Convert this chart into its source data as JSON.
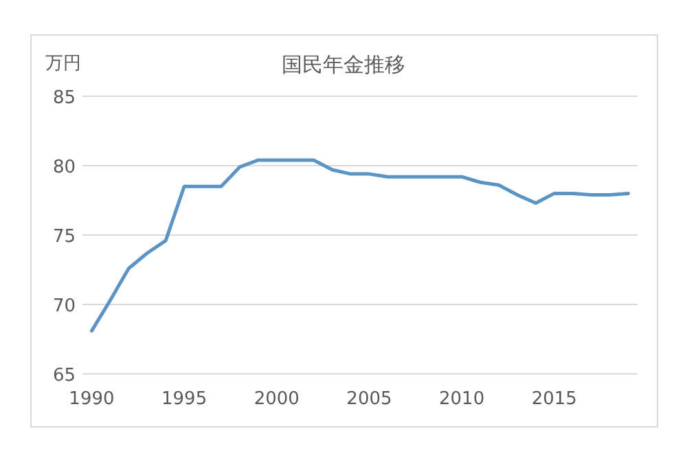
{
  "chart_data": {
    "type": "line",
    "title": "国民年金推移",
    "ylabel": "万円",
    "x": [
      1990,
      1991,
      1992,
      1993,
      1994,
      1995,
      1996,
      1997,
      1998,
      1999,
      2000,
      2001,
      2002,
      2003,
      2004,
      2005,
      2006,
      2007,
      2008,
      2009,
      2010,
      2011,
      2012,
      2013,
      2014,
      2015,
      2016,
      2017,
      2018,
      2019
    ],
    "series": [
      {
        "color": "#5b93c4",
        "values": [
          68.1,
          70.3,
          72.6,
          73.7,
          74.6,
          78.5,
          78.5,
          78.5,
          79.9,
          80.4,
          80.4,
          80.4,
          80.4,
          79.7,
          79.4,
          79.4,
          79.2,
          79.2,
          79.2,
          79.2,
          79.2,
          78.8,
          78.6,
          77.9,
          77.3,
          78.0,
          78.0,
          77.9,
          77.9,
          78.0
        ]
      }
    ],
    "xlim": [
      1989.5,
      2019.5
    ],
    "xticks": [
      1990,
      1995,
      2000,
      2005,
      2010,
      2015
    ],
    "ylim": [
      65,
      85
    ],
    "yticks": [
      65,
      70,
      75,
      80,
      85
    ],
    "grid": "y",
    "marker": "none",
    "line_style": "solid"
  }
}
